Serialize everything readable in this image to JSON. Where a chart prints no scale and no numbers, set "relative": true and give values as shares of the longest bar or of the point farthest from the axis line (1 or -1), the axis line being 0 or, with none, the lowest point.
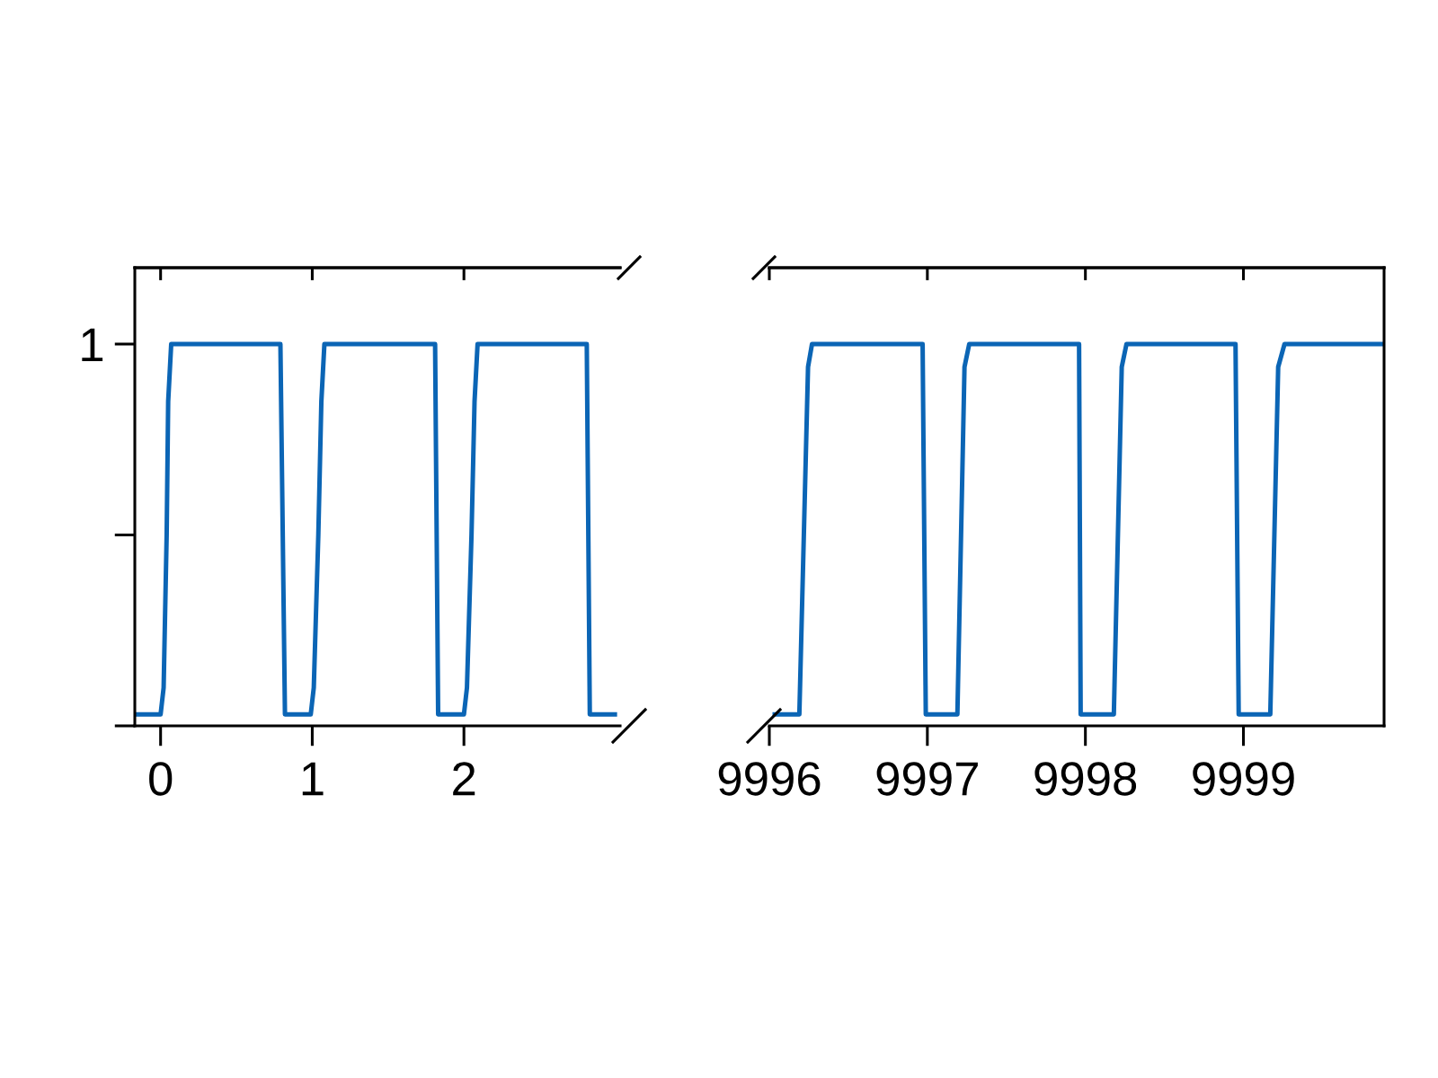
{
  "chart_data": [
    {
      "type": "line",
      "color": "#0b65b5",
      "relative": true,
      "xlim": [
        -0.17,
        3.03
      ],
      "xticks": [
        0,
        1,
        2
      ],
      "annotations": [
        "1"
      ],
      "x": [
        -0.17,
        0.0,
        0.02,
        0.04,
        0.05,
        0.07,
        0.79,
        0.82,
        0.99,
        1.01,
        1.04,
        1.06,
        1.08,
        1.81,
        1.83,
        2.0,
        2.02,
        2.05,
        2.07,
        2.09,
        2.81,
        2.83,
        3.01
      ],
      "values": [
        0.03,
        0.03,
        0.1,
        0.5,
        0.85,
        1.0,
        1.0,
        0.03,
        0.03,
        0.1,
        0.5,
        0.85,
        1.0,
        1.0,
        0.03,
        0.03,
        0.1,
        0.5,
        0.85,
        1.0,
        1.0,
        0.03,
        0.03
      ]
    },
    {
      "type": "line",
      "color": "#0b65b5",
      "relative": true,
      "xlim": [
        9996,
        9999.89
      ],
      "xticks": [
        9996,
        9997,
        9998,
        9999
      ],
      "tick_labels": "x",
      "x": [
        9996.02,
        9996.19,
        9996.245,
        9996.27,
        9996.97,
        9996.99,
        9997.19,
        9997.235,
        9997.265,
        9997.96,
        9997.97,
        9998.18,
        9998.23,
        9998.26,
        9998.95,
        9998.97,
        9999.17,
        9999.22,
        9999.26,
        9999.89
      ],
      "values": [
        0.03,
        0.03,
        0.94,
        1.0,
        1.0,
        0.03,
        0.03,
        0.94,
        1.0,
        1.0,
        0.03,
        0.03,
        0.94,
        1.0,
        1.0,
        0.03,
        0.03,
        0.94,
        1.0,
        1.0
      ]
    }
  ]
}
